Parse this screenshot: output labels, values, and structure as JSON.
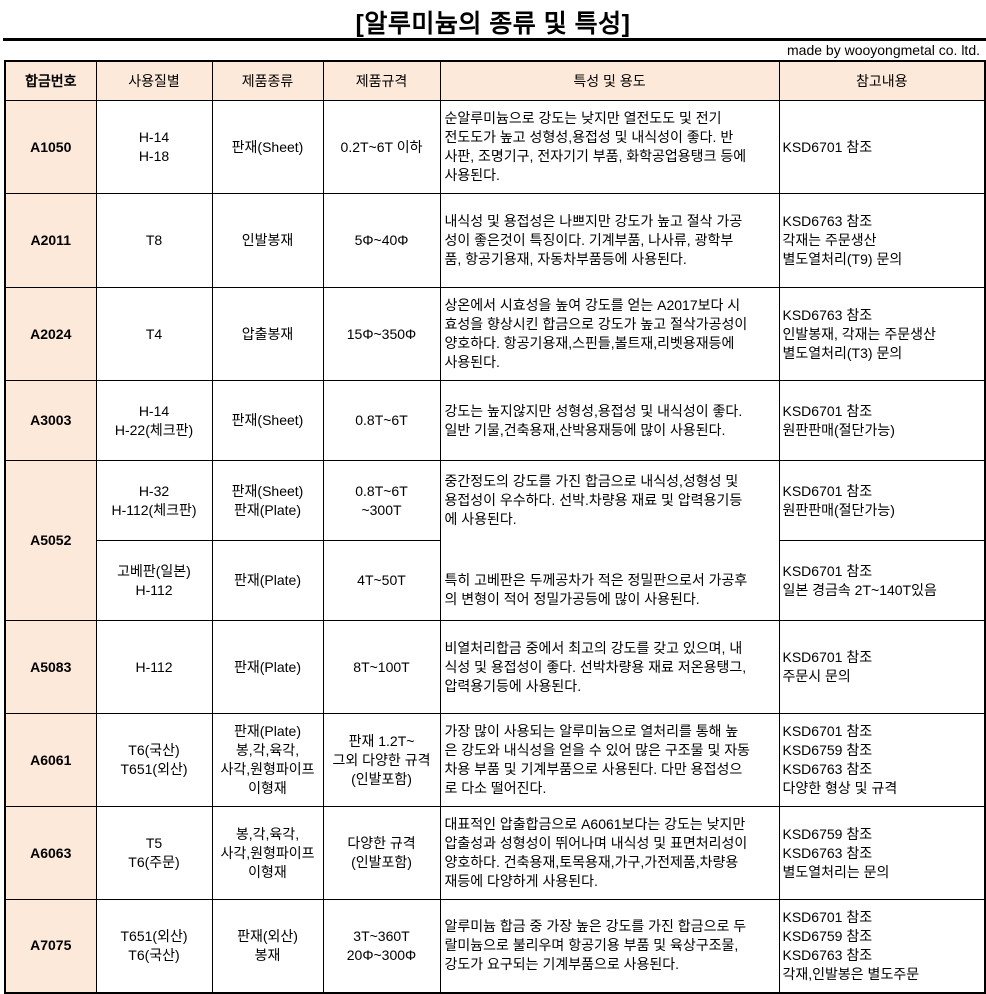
{
  "title": "[알루미늄의 종류 및 특성]",
  "credit": "made by wooyongmetal co. ltd.",
  "colors": {
    "header_bg": "#fde9d9",
    "alloy_col_bg": "#fde9d9",
    "border": "#000000"
  },
  "headers": [
    "합금번호",
    "사용질별",
    "제품종류",
    "제품규격",
    "특성 및 용도",
    "참고내용"
  ],
  "rows": [
    {
      "alloy": "A1050",
      "temper": "H-14\nH-18",
      "product": "판재(Sheet)",
      "spec": "0.2T~6T 이하",
      "desc": "순알루미늄으로 강도는 낮지만 열전도도 및 전기\n전도도가 높고 성형성,용접성 및 내식성이 좋다. 반\n사판, 조명기구, 전자기기 부품, 화학공업용탱크 등에\n사용된다.",
      "ref": "KSD6701 참조"
    },
    {
      "alloy": "A2011",
      "temper": "T8",
      "product": "인발봉재",
      "spec": "5Φ~40Φ",
      "desc": "내식성 및 용접성은 나쁘지만 강도가 높고 절삭 가공\n성이 좋은것이 특징이다. 기계부품, 나사류, 광학부\n품, 항공기용재, 자동차부품등에 사용된다.",
      "ref": "KSD6763 참조\n각재는 주문생산\n별도열처리(T9) 문의"
    },
    {
      "alloy": "A2024",
      "temper": "T4",
      "product": "압출봉재",
      "spec": "15Φ~350Φ",
      "desc": "상온에서 시효성을 높여 강도를 얻는 A2017보다 시\n효성을 향상시킨 합금으로 강도가 높고 절삭가공성이\n양호하다. 항공기용재,스핀들,볼트재,리벳용재등에\n사용된다.",
      "ref": "KSD6763 참조\n인발봉재, 각재는 주문생산\n별도열처리(T3) 문의"
    },
    {
      "alloy": "A3003",
      "temper": "H-14\nH-22(체크판)",
      "product": "판재(Sheet)",
      "spec": "0.8T~6T",
      "desc": "강도는 높지않지만 성형성,용접성 및 내식성이 좋다.\n일반 기물,건축용재,산박용재등에 많이 사용된다.",
      "ref": "KSD6701 참조\n원판판매(절단가능)"
    },
    {
      "alloy": "A5052",
      "temper": "H-32\nH-112(체크판)",
      "product": "판재(Sheet)\n판재(Plate)",
      "spec": "0.8T~6T\n~300T",
      "desc": "중간정도의 강도를 가진 합금으로 내식성,성형성 및\n용접성이 우수하다. 선박.차량용 재료 및 압력용기등\n에 사용된다.",
      "desc2": "특히 고베판은 두께공차가 적은 정밀판으로서 가공후\n의 변형이 적어 정밀가공등에 많이 사용된다.",
      "ref": "KSD6701 참조\n원판판매(절단가능)",
      "sub": {
        "temper": "고베판(일본)\nH-112",
        "product": "판재(Plate)",
        "spec": "4T~50T",
        "ref": "KSD6701 참조\n일본 경금속 2T~140T있음"
      }
    },
    {
      "alloy": "A5083",
      "temper": "H-112",
      "product": "판재(Plate)",
      "spec": "8T~100T",
      "desc": "비열처리합금 중에서 최고의 강도를 갖고 있으며, 내\n식성 및 용접성이 좋다. 선박차량용 재료 저온용탱그,\n압력용기등에 사용된다.",
      "ref": "KSD6701 참조\n주문시 문의"
    },
    {
      "alloy": "A6061",
      "temper": "T6(국산)\nT651(외산)",
      "product": "판재(Plate)\n봉,각,육각,\n사각,원형파이프\n이형재",
      "spec": "판재 1.2T~\n그외 다양한 규격\n(인발포함)",
      "desc": "가장 많이 사용되는 알루미늄으로 열처리를 통해 높\n은 강도와 내식성을 얻을 수 있어 많은 구조물 및 자동\n차용 부품 및 기계부품으로 사용된다. 다만 용접성으\n로 다소 떨어진다.",
      "ref": "KSD6701 참조\nKSD6759 참조\nKSD6763 참조\n다양한 형상 및 규격"
    },
    {
      "alloy": "A6063",
      "temper": "T5\nT6(주문)",
      "product": "봉,각,육각,\n사각,원형파이프\n이형재",
      "spec": "다양한 규격\n(인발포함)",
      "desc": "대표적인 압출합금으로 A6061보다는 강도는 낮지만\n압출성과 성형성이 뛰어나며 내식성 및 표면처리성이\n양호하다. 건축용재,토목용재,가구,가전제품,차량용\n재등에 다양하게 사용된다.",
      "ref": "KSD6759 참조\nKSD6763 참조\n별도열처리는 문의"
    },
    {
      "alloy": "A7075",
      "temper": "T651(외산)\nT6(국산)",
      "product": "판재(외산)\n봉재",
      "spec": "3T~360T\n20Φ~300Φ",
      "desc": "알루미늄 합금 중 가장 높은 강도를 가진 합금으로 두\n랄미늄으로 불리우며 항공기용 부품 및 육상구조물,\n강도가 요구되는 기계부품으로 사용된다.",
      "ref": "KSD6701 참조\nKSD6759 참조\nKSD6763 참조\n각재,인발봉은 별도주문"
    }
  ]
}
